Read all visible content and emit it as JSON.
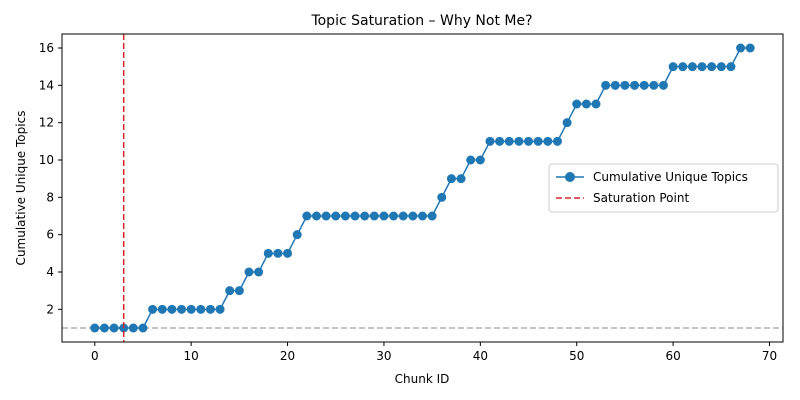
{
  "chart_data": {
    "type": "line",
    "title": "Topic Saturation – Why Not Me?",
    "xlabel": "Chunk ID",
    "ylabel": "Cumulative Unique Topics",
    "xlim": [
      -3.4,
      71.4
    ],
    "ylim": [
      0.25,
      16.75
    ],
    "xticks": [
      0,
      10,
      20,
      30,
      40,
      50,
      60,
      70
    ],
    "yticks": [
      2,
      4,
      6,
      8,
      10,
      12,
      14,
      16
    ],
    "grid": false,
    "legend_position": "center-right",
    "series": [
      {
        "name": "Cumulative Unique Topics",
        "color": "#1f77b4",
        "marker": "circle",
        "x": [
          0,
          1,
          2,
          3,
          4,
          5,
          6,
          7,
          8,
          9,
          10,
          11,
          12,
          13,
          14,
          15,
          16,
          17,
          18,
          19,
          20,
          21,
          22,
          23,
          24,
          25,
          26,
          27,
          28,
          29,
          30,
          31,
          32,
          33,
          34,
          35,
          36,
          37,
          38,
          39,
          40,
          41,
          42,
          43,
          44,
          45,
          46,
          47,
          48,
          49,
          50,
          51,
          52,
          53,
          54,
          55,
          56,
          57,
          58,
          59,
          60,
          61,
          62,
          63,
          64,
          65,
          66,
          67,
          68
        ],
        "y": [
          1,
          1,
          1,
          1,
          1,
          1,
          2,
          2,
          2,
          2,
          2,
          2,
          2,
          2,
          3,
          3,
          4,
          4,
          5,
          5,
          5,
          6,
          7,
          7,
          7,
          7,
          7,
          7,
          7,
          7,
          7,
          7,
          7,
          7,
          7,
          7,
          8,
          9,
          9,
          10,
          10,
          11,
          11,
          11,
          11,
          11,
          11,
          11,
          11,
          12,
          13,
          13,
          13,
          14,
          14,
          14,
          14,
          14,
          14,
          14,
          15,
          15,
          15,
          15,
          15,
          15,
          15,
          16,
          16
        ]
      }
    ],
    "vertical_lines": [
      {
        "name": "Saturation Point",
        "x": 3,
        "color": "#d62728",
        "style": "dashed"
      }
    ],
    "horizontal_lines": [
      {
        "y": 1,
        "color": "#b0b0b0",
        "style": "dashed"
      }
    ]
  }
}
